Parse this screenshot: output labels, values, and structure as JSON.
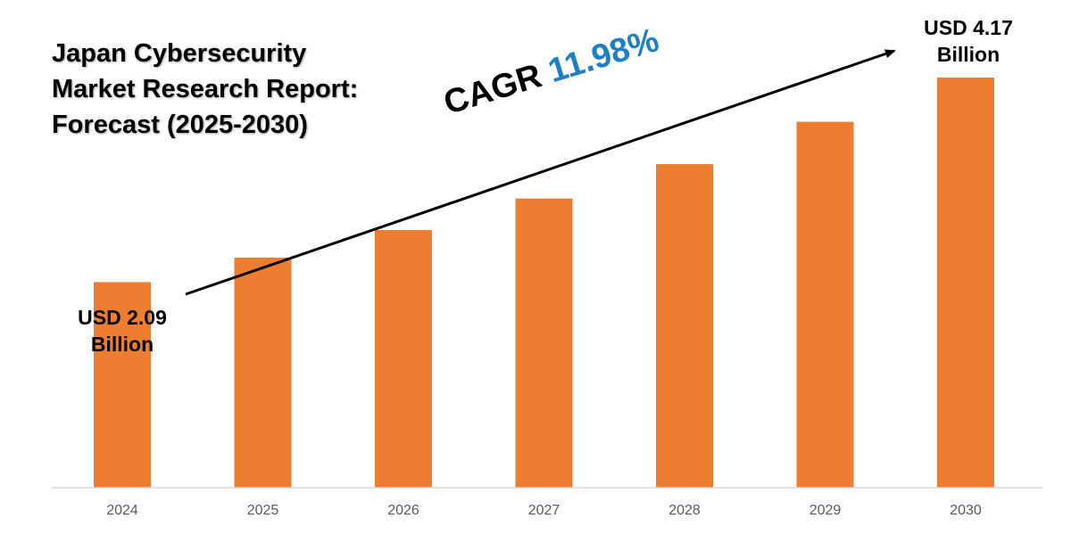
{
  "title": {
    "line1": "Japan Cybersecurity",
    "line2": "Market Research Report:",
    "line3": "Forecast (2025-2030)"
  },
  "cagr": {
    "label": "CAGR",
    "value": "11.98%"
  },
  "start_label": {
    "line1": "USD 2.09",
    "line2": "Billion"
  },
  "end_label": {
    "line1": "USD 4.17",
    "line2": "Billion"
  },
  "colors": {
    "bar": "#ed7d31",
    "cagr_value": "#1f7fc4",
    "axis": "#d9d9d9",
    "tick_text": "#595959"
  },
  "chart_data": {
    "type": "bar",
    "title": "Japan Cybersecurity Market Research Report: Forecast (2025-2030)",
    "xlabel": "",
    "ylabel": "",
    "categories": [
      "2024",
      "2025",
      "2026",
      "2027",
      "2028",
      "2029",
      "2030"
    ],
    "values": [
      2.09,
      2.34,
      2.62,
      2.94,
      3.29,
      3.72,
      4.17
    ],
    "ylim": [
      0,
      4.17
    ],
    "unit": "USD Billion",
    "grid": false,
    "legend": "none"
  }
}
